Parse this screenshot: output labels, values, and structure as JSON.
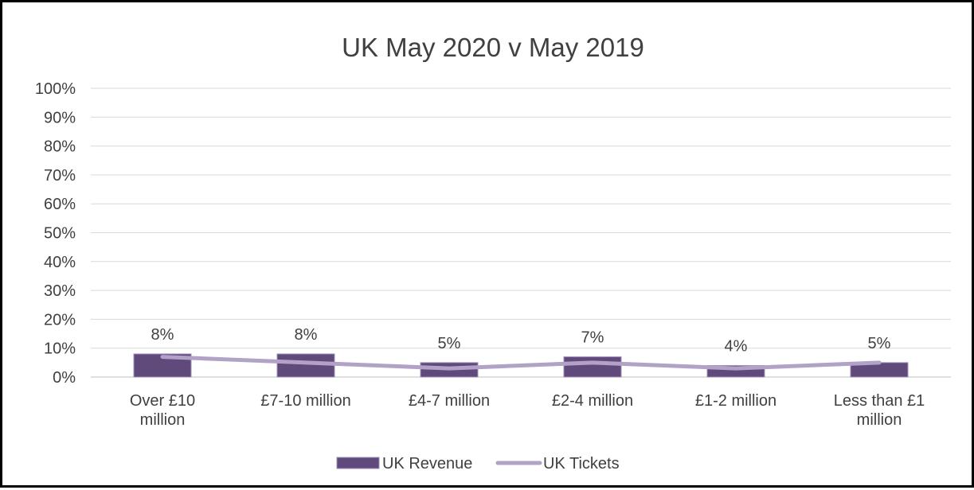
{
  "chart_data": {
    "type": "bar",
    "title": "UK May 2020 v May 2019",
    "categories": [
      "Over £10 million",
      "£7-10 million",
      "£4-7 million",
      "£2-4 million",
      "£1-2 million",
      "Less than £1 million"
    ],
    "series": [
      {
        "name": "UK Revenue",
        "kind": "bar",
        "values": [
          8,
          8,
          5,
          7,
          4,
          5
        ],
        "data_labels": [
          "8%",
          "8%",
          "5%",
          "7%",
          "4%",
          "5%"
        ],
        "color": "#604A7B"
      },
      {
        "name": "UK Tickets",
        "kind": "line",
        "values": [
          7,
          5,
          3,
          5,
          3,
          5
        ],
        "color": "#B3A2C7"
      }
    ],
    "y_ticks": [
      "0%",
      "10%",
      "20%",
      "30%",
      "40%",
      "50%",
      "60%",
      "70%",
      "80%",
      "90%",
      "100%"
    ],
    "ylim": [
      0,
      100
    ],
    "grid": true,
    "legend_position": "bottom"
  }
}
